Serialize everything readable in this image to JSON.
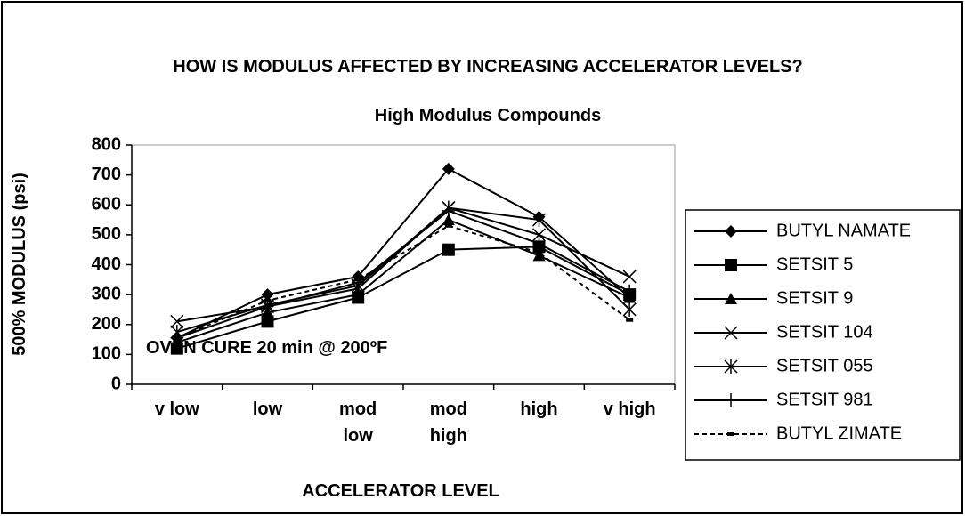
{
  "chart_data": {
    "type": "line",
    "title": "HOW IS MODULUS AFFECTED BY INCREASING ACCELERATOR LEVELS?",
    "subtitle": "High Modulus Compounds",
    "x_label": "ACCELERATOR LEVEL",
    "y_label": "500% MODULUS (psi)",
    "annotation": "OVEN CURE 20 min @ 200ºF",
    "categories": [
      "v low",
      "low",
      "mod\nlow",
      "mod\nhigh",
      "high",
      "v high"
    ],
    "ylim": [
      0,
      800
    ],
    "yticks": [
      0,
      100,
      200,
      300,
      400,
      500,
      600,
      700,
      800
    ],
    "legend": "right",
    "series": [
      {
        "name": "BUTYL NAMATE",
        "color": "#000000",
        "marker": "diamond",
        "line_style": "solid",
        "values": [
          155,
          300,
          360,
          720,
          560,
          290
        ]
      },
      {
        "name": "SETSIT 5",
        "color": "#000000",
        "marker": "square",
        "line_style": "solid",
        "values": [
          120,
          210,
          290,
          450,
          460,
          300
        ]
      },
      {
        "name": "SETSIT 9",
        "color": "#000000",
        "marker": "triangle",
        "line_style": "solid",
        "values": [
          140,
          240,
          300,
          550,
          430,
          290
        ]
      },
      {
        "name": "SETSIT 104",
        "color": "#000000",
        "marker": "x",
        "line_style": "solid",
        "values": [
          210,
          260,
          320,
          590,
          500,
          360
        ]
      },
      {
        "name": "SETSIT 055",
        "color": "#000000",
        "marker": "star",
        "line_style": "solid",
        "values": [
          175,
          265,
          330,
          590,
          550,
          250
        ]
      },
      {
        "name": "SETSIT 981",
        "color": "#000000",
        "marker": "plus",
        "line_style": "solid",
        "values": [
          155,
          260,
          340,
          580,
          470,
          310
        ]
      },
      {
        "name": "BUTYL ZIMATE",
        "color": "#000000",
        "marker": "dash",
        "line_style": "dashed",
        "values": [
          155,
          280,
          350,
          530,
          440,
          215
        ]
      }
    ]
  }
}
